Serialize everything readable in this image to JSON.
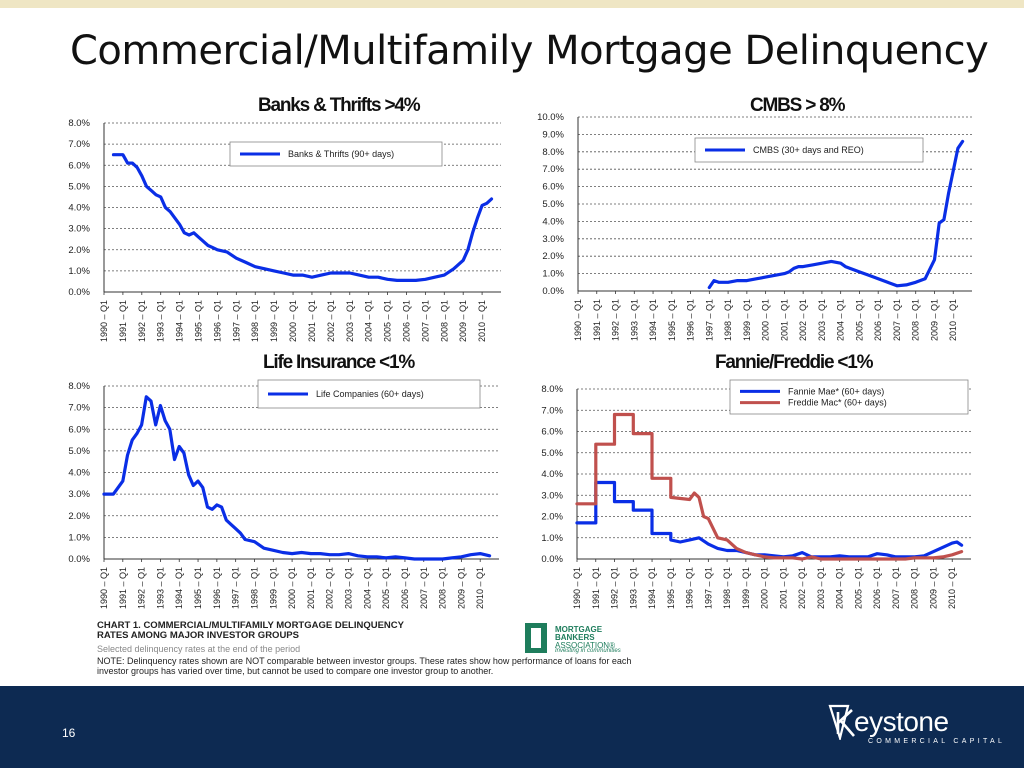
{
  "slide": {
    "title": "Commercial/Multifamily Mortgage Delinquency",
    "page_number": "16",
    "brand_name": "eystone",
    "brand_sub": "COMMERCIAL CAPITAL"
  },
  "caption": {
    "title_line1": "CHART 1.  COMMERCIAL/MULTIFAMILY MORTGAGE DELINQUENCY",
    "title_line2": "RATES AMONG MAJOR INVESTOR GROUPS",
    "subtitle": "Selected delinquency rates at the end of the period",
    "note": "NOTE: Delinquency rates shown are NOT comparable between investor groups.  These rates show how performance of loans for each investor groups has varied over time, but cannot be used to compare one investor group to another."
  },
  "logo": {
    "line1": "MORTGAGE",
    "line2": "BANKERS",
    "line3": "ASSOCIATION®",
    "tagline": "Investing in communities"
  },
  "colors": {
    "blue": "#0a2ee6",
    "red": "#c0504d",
    "footer": "#0d2a52",
    "grid": "#555555"
  },
  "chart_data": [
    {
      "type": "line",
      "title": "Banks & Thrifts >4%",
      "categories": [
        "1990 – Q1",
        "1991 – Q1",
        "1992 – Q1",
        "1993 – Q1",
        "1994 – Q1",
        "1995 – Q1",
        "1996 – Q1",
        "1997 – Q1",
        "1998 – Q1",
        "1999 – Q1",
        "2000 – Q1",
        "2001 – Q1",
        "2002 – Q1",
        "2003 – Q1",
        "2004 – Q1",
        "2005 – Q1",
        "2006 – Q1",
        "2007 – Q1",
        "2008 – Q1",
        "2009 – Q1",
        "2010 – Q1"
      ],
      "yticks": [
        "0.0%",
        "1.0%",
        "2.0%",
        "3.0%",
        "4.0%",
        "5.0%",
        "6.0%",
        "7.0%",
        "8.0%"
      ],
      "ylim": [
        0,
        8
      ],
      "legend": "top-right",
      "series": [
        {
          "name": "Banks & Thrifts (90+ days)",
          "color": "#0a2ee6",
          "x": [
            0.5,
            1.0,
            1.25,
            1.5,
            1.75,
            2.0,
            2.25,
            2.5,
            2.75,
            3.0,
            3.25,
            3.5,
            3.75,
            4.0,
            4.25,
            4.5,
            4.75,
            5.0,
            5.25,
            5.5,
            5.75,
            6.0,
            6.5,
            7.0,
            7.5,
            8.0,
            8.5,
            9.0,
            9.5,
            10.0,
            10.5,
            11.0,
            11.5,
            12.0,
            12.5,
            13.0,
            13.5,
            14.0,
            14.5,
            15.0,
            15.5,
            16.0,
            16.5,
            17.0,
            17.5,
            18.0,
            18.5,
            19.0,
            19.25,
            19.5,
            19.75,
            20.0,
            20.25,
            20.5
          ],
          "values": [
            6.5,
            6.5,
            6.1,
            6.1,
            5.9,
            5.5,
            5.0,
            4.8,
            4.6,
            4.5,
            4.0,
            3.8,
            3.5,
            3.2,
            2.8,
            2.7,
            2.8,
            2.6,
            2.4,
            2.2,
            2.1,
            2.0,
            1.9,
            1.6,
            1.4,
            1.2,
            1.1,
            1.0,
            0.9,
            0.8,
            0.8,
            0.7,
            0.8,
            0.9,
            0.9,
            0.9,
            0.8,
            0.7,
            0.7,
            0.6,
            0.55,
            0.55,
            0.55,
            0.6,
            0.7,
            0.8,
            1.1,
            1.5,
            2.0,
            2.8,
            3.5,
            4.1,
            4.2,
            4.4
          ]
        }
      ]
    },
    {
      "type": "line",
      "title": "CMBS > 8%",
      "categories": [
        "1990 – Q1",
        "1991 – Q1",
        "1992 – Q1",
        "1993 – Q1",
        "1994 – Q1",
        "1995 – Q1",
        "1996 – Q1",
        "1997 – Q1",
        "1998 – Q1",
        "1999 – Q1",
        "2000 – Q1",
        "2001 – Q1",
        "2002 – Q1",
        "2003 – Q1",
        "2004 – Q1",
        "2005 – Q1",
        "2006 – Q1",
        "2007 – Q1",
        "2008 – Q1",
        "2009 – Q1",
        "2010 – Q1"
      ],
      "yticks": [
        "0.0%",
        "1.0%",
        "2.0%",
        "3.0%",
        "4.0%",
        "5.0%",
        "6.0%",
        "7.0%",
        "8.0%",
        "9.0%",
        "10.0%"
      ],
      "ylim": [
        0,
        10
      ],
      "legend": "top-right",
      "series": [
        {
          "name": "CMBS (30+ days and REO)",
          "color": "#0a2ee6",
          "x": [
            7.0,
            7.25,
            7.5,
            8.0,
            8.5,
            9.0,
            9.5,
            10.0,
            10.5,
            11.0,
            11.25,
            11.5,
            11.75,
            12.0,
            12.5,
            13.0,
            13.5,
            14.0,
            14.25,
            14.5,
            15.0,
            15.5,
            16.0,
            16.5,
            17.0,
            17.5,
            18.0,
            18.5,
            19.0,
            19.25,
            19.5,
            19.75,
            20.0,
            20.25,
            20.5
          ],
          "values": [
            0.2,
            0.6,
            0.5,
            0.5,
            0.6,
            0.6,
            0.7,
            0.8,
            0.9,
            1.0,
            1.1,
            1.3,
            1.4,
            1.4,
            1.5,
            1.6,
            1.7,
            1.6,
            1.4,
            1.3,
            1.1,
            0.9,
            0.7,
            0.5,
            0.3,
            0.35,
            0.5,
            0.7,
            1.8,
            3.9,
            4.1,
            5.6,
            6.9,
            8.2,
            8.6
          ]
        }
      ]
    },
    {
      "type": "line",
      "title": "Life Insurance <1%",
      "categories": [
        "1990 – Q1",
        "1991 – Q1",
        "1992 – Q1",
        "1993 – Q1",
        "1994 – Q1",
        "1995 – Q1",
        "1996 – Q1",
        "1997 – Q1",
        "1998 – Q1",
        "1999 – Q1",
        "2000 – Q1",
        "2001 – Q1",
        "2002 – Q1",
        "2003 – Q1",
        "2004 – Q1",
        "2005 – Q1",
        "2006 – Q1",
        "2007 – Q1",
        "2008 – Q1",
        "2009 – Q1",
        "2010 – Q1"
      ],
      "yticks": [
        "0.0%",
        "1.0%",
        "2.0%",
        "3.0%",
        "4.0%",
        "5.0%",
        "6.0%",
        "7.0%",
        "8.0%"
      ],
      "ylim": [
        0,
        8
      ],
      "legend": "top-right",
      "series": [
        {
          "name": "Life Companies (60+ days)",
          "color": "#0a2ee6",
          "x": [
            0.0,
            0.5,
            1.0,
            1.25,
            1.5,
            1.75,
            2.0,
            2.25,
            2.5,
            2.75,
            3.0,
            3.25,
            3.5,
            3.75,
            4.0,
            4.25,
            4.5,
            4.75,
            5.0,
            5.25,
            5.5,
            5.75,
            6.0,
            6.25,
            6.5,
            6.75,
            7.0,
            7.25,
            7.5,
            8.0,
            8.5,
            9.0,
            9.5,
            10.0,
            10.5,
            11.0,
            11.5,
            12.0,
            12.5,
            13.0,
            13.5,
            14.0,
            14.5,
            15.0,
            15.5,
            16.0,
            16.5,
            17.0,
            17.5,
            18.0,
            18.5,
            19.0,
            19.5,
            20.0,
            20.5
          ],
          "values": [
            3.0,
            3.0,
            3.6,
            4.8,
            5.5,
            5.8,
            6.2,
            7.5,
            7.3,
            6.2,
            7.1,
            6.4,
            6.0,
            4.6,
            5.2,
            4.9,
            3.9,
            3.4,
            3.6,
            3.3,
            2.4,
            2.3,
            2.5,
            2.4,
            1.8,
            1.6,
            1.4,
            1.2,
            0.9,
            0.8,
            0.5,
            0.4,
            0.3,
            0.25,
            0.3,
            0.25,
            0.25,
            0.2,
            0.2,
            0.25,
            0.15,
            0.1,
            0.1,
            0.05,
            0.1,
            0.05,
            0.0,
            0.0,
            0.0,
            0.0,
            0.05,
            0.1,
            0.2,
            0.25,
            0.15
          ]
        }
      ]
    },
    {
      "type": "line",
      "title": "Fannie/Freddie <1%",
      "categories": [
        "1990 – Q1",
        "1991 – Q1",
        "1992 – Q1",
        "1993 – Q1",
        "1994 – Q1",
        "1995 – Q1",
        "1996 – Q1",
        "1997 – Q1",
        "1998 – Q1",
        "1999 – Q1",
        "2000 – Q1",
        "2001 – Q1",
        "2002 – Q1",
        "2003 – Q1",
        "2004 – Q1",
        "2005 – Q1",
        "2006 – Q1",
        "2007 – Q1",
        "2008 – Q1",
        "2009 – Q1",
        "2010 – Q1"
      ],
      "yticks": [
        "0.0%",
        "1.0%",
        "2.0%",
        "3.0%",
        "4.0%",
        "5.0%",
        "6.0%",
        "7.0%",
        "8.0%"
      ],
      "ylim": [
        0,
        8
      ],
      "legend": "top-right",
      "series": [
        {
          "name": "Fannie Mae* (60+ days)",
          "color": "#0a2ee6",
          "x": [
            0.0,
            1.0,
            1.0,
            2.0,
            2.0,
            3.0,
            3.0,
            4.0,
            4.0,
            5.0,
            5.0,
            5.5,
            6.0,
            6.5,
            7.0,
            7.5,
            8.0,
            8.5,
            9.0,
            9.5,
            10.0,
            10.5,
            11.0,
            11.5,
            12.0,
            12.5,
            13.0,
            13.5,
            14.0,
            14.5,
            15.0,
            15.5,
            16.0,
            16.5,
            17.0,
            17.5,
            18.0,
            18.5,
            19.0,
            19.5,
            20.0,
            20.25,
            20.5
          ],
          "values": [
            1.7,
            1.7,
            3.6,
            3.6,
            2.7,
            2.7,
            2.3,
            2.3,
            1.2,
            1.2,
            0.9,
            0.8,
            0.9,
            1.0,
            0.7,
            0.5,
            0.4,
            0.4,
            0.3,
            0.2,
            0.2,
            0.15,
            0.1,
            0.15,
            0.3,
            0.1,
            0.1,
            0.1,
            0.15,
            0.1,
            0.1,
            0.1,
            0.25,
            0.2,
            0.1,
            0.1,
            0.1,
            0.15,
            0.35,
            0.55,
            0.75,
            0.8,
            0.65
          ]
        },
        {
          "name": "Freddie Mac* (60+ days)",
          "color": "#c0504d",
          "x": [
            0.0,
            1.0,
            1.0,
            2.0,
            2.0,
            2.5,
            3.0,
            3.0,
            4.0,
            4.0,
            5.0,
            5.0,
            6.0,
            6.25,
            6.5,
            6.75,
            7.0,
            7.5,
            8.0,
            8.5,
            9.0,
            9.5,
            10.0,
            10.5,
            11.0,
            11.5,
            12.0,
            12.5,
            13.0,
            14.0,
            15.0,
            16.0,
            17.0,
            17.5,
            18.0,
            18.5,
            19.0,
            19.5,
            20.0,
            20.5
          ],
          "values": [
            2.6,
            2.6,
            5.4,
            5.4,
            6.8,
            6.8,
            6.8,
            5.9,
            5.9,
            3.8,
            3.8,
            2.9,
            2.8,
            3.1,
            2.9,
            2.0,
            1.9,
            1.0,
            0.9,
            0.5,
            0.3,
            0.2,
            0.1,
            0.05,
            0.05,
            0.05,
            0.0,
            0.1,
            0.0,
            0.0,
            0.0,
            0.0,
            0.0,
            0.0,
            0.05,
            0.05,
            0.05,
            0.1,
            0.2,
            0.35
          ]
        }
      ]
    }
  ]
}
